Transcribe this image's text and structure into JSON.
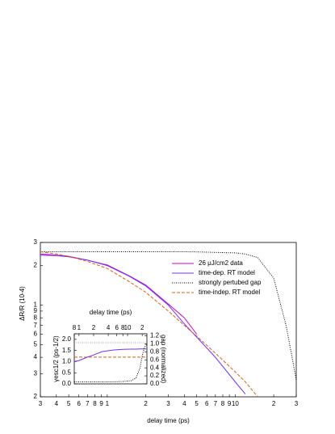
{
  "chart_data": [
    {
      "type": "line",
      "x_label": "delay time (ps)",
      "y_label": "ΔR/R (10-4)",
      "log_x": true,
      "log_y": true,
      "legend": "upper right",
      "x": [
        0.3,
        0.4,
        0.5,
        0.7,
        1,
        1.5,
        2,
        3,
        4,
        5,
        7,
        10,
        12,
        15,
        20,
        25,
        30
      ],
      "series": [
        {
          "name": "26 μJ/cm2 data",
          "color": "#cc00cc",
          "style": "solid",
          "values": [
            2.45,
            2.4,
            2.35,
            2.2,
            2.02,
            1.66,
            1.42,
            1.02,
            0.8,
            0.6,
            null,
            null,
            null,
            null,
            null,
            null,
            null
          ]
        },
        {
          "name": "time-dep. RT model",
          "color": "#7030ff",
          "style": "solid",
          "values": [
            2.4,
            2.38,
            2.33,
            2.2,
            2.0,
            1.65,
            1.4,
            1.0,
            0.72,
            0.57,
            0.4,
            0.26,
            0.21,
            null,
            null,
            null,
            null
          ]
        },
        {
          "name": "strongly pertubed gap",
          "color": "#000000",
          "style": "dotted",
          "values": [
            2.55,
            2.55,
            2.55,
            2.55,
            2.55,
            2.55,
            2.55,
            2.55,
            2.55,
            2.54,
            2.52,
            2.5,
            2.45,
            2.3,
            1.6,
            0.7,
            0.27
          ]
        },
        {
          "name": "time-indep. RT model",
          "color": "#e06010",
          "style": "dashed",
          "values": [
            2.55,
            2.45,
            2.35,
            2.15,
            1.9,
            1.5,
            1.25,
            0.9,
            0.7,
            0.58,
            0.43,
            0.31,
            0.26,
            0.2,
            null,
            null,
            null
          ]
        }
      ],
      "xlim": [
        0.3,
        30
      ],
      "xticks": [
        {
          "value": 0.3,
          "label": "3"
        },
        {
          "value": 0.4,
          "label": "4"
        },
        {
          "value": 0.5,
          "label": "5"
        },
        {
          "value": 0.6,
          "label": "6"
        },
        {
          "value": 0.7,
          "label": "7"
        },
        {
          "value": 0.8,
          "label": "8"
        },
        {
          "value": 0.9,
          "label": "9"
        },
        1,
        {
          "value": 2,
          "label": "2"
        },
        {
          "value": 3,
          "label": "3"
        },
        {
          "value": 4,
          "label": "4"
        },
        {
          "value": 5,
          "label": "5"
        },
        {
          "value": 6,
          "label": "6"
        },
        {
          "value": 7,
          "label": "7"
        },
        {
          "value": 8,
          "label": "8"
        },
        {
          "value": 9,
          "label": "9"
        },
        10,
        {
          "value": 20,
          "label": "2"
        },
        {
          "value": 30,
          "label": "3"
        }
      ],
      "ylim": [
        0.2,
        3
      ],
      "yticks": [
        {
          "value": 0.2,
          "label": "2"
        },
        {
          "value": 0.3,
          "label": "3"
        },
        {
          "value": 0.4,
          "label": "4"
        },
        {
          "value": 0.5,
          "label": "5"
        },
        {
          "value": 0.6,
          "label": "6"
        },
        {
          "value": 0.7,
          "label": "7"
        },
        {
          "value": 0.8,
          "label": "8"
        },
        {
          "value": 0.9,
          "label": "9"
        },
        1,
        2,
        3
      ]
    },
    {
      "type": "line",
      "x_label": "delay time (ps)",
      "y_label": "γesc1/2 (ps-1/2)",
      "y2_label": "gap (normalized)",
      "log_x": true,
      "x": [
        0.8,
        1,
        1.5,
        2,
        3,
        5,
        8,
        12,
        15,
        18,
        20,
        22,
        25
      ],
      "series": [
        {
          "color": "#999999",
          "style": "dotted",
          "values": [
            1.85,
            1.85,
            1.85,
            1.85,
            1.85,
            1.85,
            1.85,
            1.85,
            1.85,
            1.85,
            1.85,
            1.85,
            1.85
          ]
        },
        {
          "color": "#7030ff",
          "style": "solid",
          "values": [
            1.0,
            1.05,
            1.2,
            1.3,
            1.45,
            1.52,
            1.55,
            1.56,
            1.56,
            1.57,
            1.57,
            1.57,
            1.57
          ]
        },
        {
          "color": "#e06010",
          "style": "dashed",
          "values": [
            1.2,
            1.2,
            1.2,
            1.2,
            1.2,
            1.2,
            1.2,
            1.2,
            1.2,
            1.2,
            1.2,
            1.2,
            1.2
          ]
        },
        {
          "color": "#000000",
          "style": "dotted",
          "axis": "y2",
          "values": [
            0.05,
            0.05,
            0.05,
            0.05,
            0.05,
            0.05,
            0.06,
            0.08,
            0.15,
            0.4,
            0.7,
            0.9,
            1.0
          ]
        }
      ],
      "xlim": [
        0.8,
        25
      ],
      "xticks": [
        {
          "value": 0.8,
          "label": "8"
        },
        1,
        {
          "value": 2,
          "label": "2"
        },
        {
          "value": 4,
          "label": "4"
        },
        {
          "value": 6,
          "label": "6"
        },
        {
          "value": 8,
          "label": "8"
        },
        10,
        {
          "value": 20,
          "label": "2"
        }
      ],
      "ylim": [
        0,
        2.25
      ],
      "yticks": [
        {
          "value": 0,
          "label": "0.0"
        },
        {
          "value": 0.5,
          "label": "0.5"
        },
        {
          "value": 1,
          "label": "1.0"
        },
        {
          "value": 1.5,
          "label": "1.5"
        },
        {
          "value": 2,
          "label": "2.0"
        }
      ],
      "y2lim": [
        0,
        1.25
      ],
      "y2ticks": [
        {
          "value": 0,
          "label": "0.0"
        },
        {
          "value": 0.2,
          "label": "0.2"
        },
        {
          "value": 0.4,
          "label": "0.4"
        },
        {
          "value": 0.6,
          "label": "0.6"
        },
        {
          "value": 0.8,
          "label": "0.8"
        },
        {
          "value": 1,
          "label": "1.0"
        },
        {
          "value": 1.2,
          "label": "1.2"
        }
      ]
    }
  ]
}
